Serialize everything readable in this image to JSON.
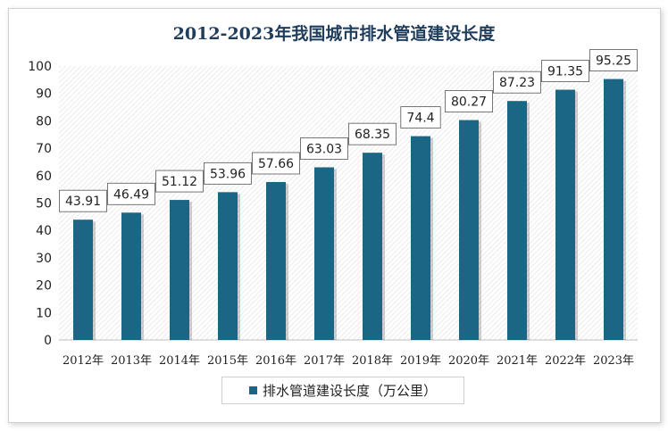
{
  "chart_data": {
    "type": "bar",
    "title": "2012-2023年我国城市排水管道建设长度",
    "categories": [
      "2012年",
      "2013年",
      "2014年",
      "2015年",
      "2016年",
      "2017年",
      "2018年",
      "2019年",
      "2020年",
      "2021年",
      "2022年",
      "2023年"
    ],
    "series": [
      {
        "name": "排水管道建设长度（万公里）",
        "values": [
          43.91,
          46.49,
          51.12,
          53.96,
          57.66,
          63.03,
          68.35,
          74.4,
          80.27,
          87.23,
          91.35,
          95.25
        ]
      }
    ],
    "value_labels": [
      "43.91",
      "46.49",
      "51.12",
      "53.96",
      "57.66",
      "63.03",
      "68.35",
      "74.4",
      "80.27",
      "87.23",
      "91.35",
      "95.25"
    ],
    "yticks": [
      "0",
      "10",
      "20",
      "30",
      "40",
      "50",
      "60",
      "70",
      "80",
      "90",
      "100"
    ],
    "ylim": [
      0,
      100
    ],
    "xlabel": "",
    "ylabel": "",
    "legend_position": "bottom",
    "grid": false,
    "colors": {
      "bar": "#1b6585",
      "title": "#1f3d5c"
    }
  }
}
